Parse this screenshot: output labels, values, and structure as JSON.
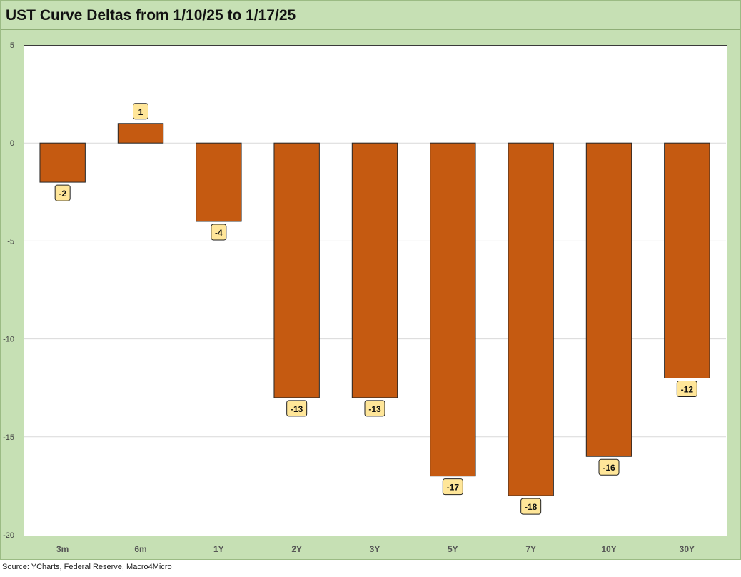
{
  "header": {
    "title": "UST Curve Deltas from 1/10/25 to 1/17/25"
  },
  "footer": {
    "source": "Source: YCharts, Federal Reserve, Macro4Micro"
  },
  "chart_data": {
    "type": "bar",
    "title": "UST Curve Deltas from 1/10/25 to 1/17/25",
    "xlabel": "",
    "ylabel": "",
    "categories": [
      "3m",
      "6m",
      "1Y",
      "2Y",
      "3Y",
      "5Y",
      "7Y",
      "10Y",
      "30Y"
    ],
    "values": [
      -2,
      1,
      -4,
      -13,
      -13,
      -17,
      -18,
      -16,
      -12
    ],
    "data_labels": [
      "-2",
      "1",
      "-4",
      "-13",
      "-13",
      "-17",
      "-18",
      "-16",
      "-12"
    ],
    "ylim": [
      -20,
      5
    ],
    "yticks": [
      5,
      0,
      -5,
      -10,
      -15,
      -20
    ],
    "ytick_labels": [
      "5",
      "0",
      "-5",
      "-10",
      "-15",
      "-20"
    ],
    "grid": true,
    "legend": "none",
    "colors": {
      "bar_fill": "#c55a11",
      "bar_stroke": "#262626",
      "label_fill": "#ffe699",
      "label_stroke": "#222222",
      "grid": "#d9d9d9",
      "frame_bg": "#c6e0b4"
    }
  }
}
